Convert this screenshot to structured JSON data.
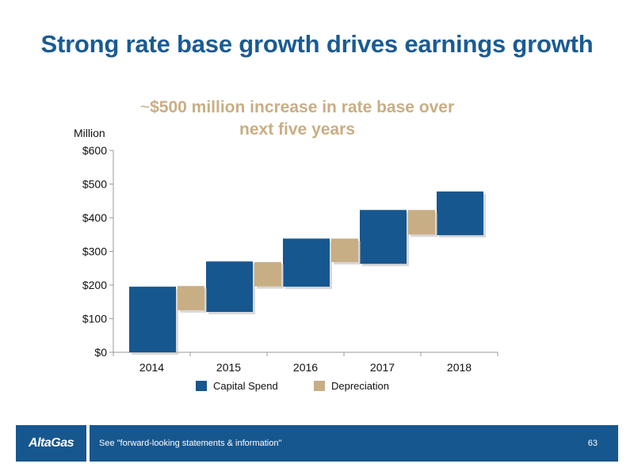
{
  "title": "Strong rate base growth drives earnings growth",
  "callout": {
    "tilde": "~",
    "line1": "$500 million increase in rate base over",
    "line2": "next five years"
  },
  "chart_data": {
    "type": "bar",
    "subtype": "waterfall",
    "title": "",
    "ylabel": "Million",
    "ylim": [
      0,
      600
    ],
    "yticks": [
      0,
      100,
      200,
      300,
      400,
      500,
      600
    ],
    "ytick_labels": [
      "$0",
      "$100",
      "$200",
      "$300",
      "$400",
      "$500",
      "$600"
    ],
    "categories": [
      "2014",
      "2015",
      "2016",
      "2017",
      "2018"
    ],
    "series": [
      {
        "name": "Capital Spend",
        "color": "#17578f",
        "ranges": [
          [
            0,
            195
          ],
          [
            120,
            270
          ],
          [
            195,
            338
          ],
          [
            263,
            423
          ],
          [
            348,
            478
          ]
        ]
      },
      {
        "name": "Depreciation",
        "color": "#c8ae84",
        "ranges": [
          [
            125,
            197
          ],
          [
            196,
            268
          ],
          [
            268,
            338
          ],
          [
            350,
            423
          ]
        ]
      }
    ],
    "grid": false,
    "legend_position": "bottom"
  },
  "footer": {
    "logo": "AltaGas",
    "note": "See \"forward-looking statements & information\"",
    "page_number": "63"
  }
}
